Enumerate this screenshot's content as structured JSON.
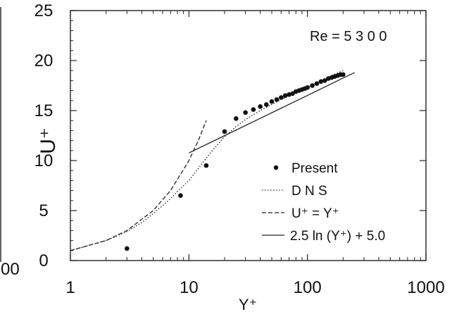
{
  "chart_data": {
    "type": "line",
    "title": "",
    "xlabel": "Y⁺",
    "ylabel": "U⁺",
    "x_scale": "log",
    "xlim": [
      1,
      1000
    ],
    "ylim": [
      0,
      25
    ],
    "x_ticks": [
      "1",
      "10",
      "100",
      "1000"
    ],
    "y_ticks": [
      "0",
      "5",
      "10",
      "15",
      "20",
      "25"
    ],
    "grid": false,
    "legend_position": "lower-right",
    "annotation": "Re = 5 3 0 0",
    "left_fragment_tick": "00",
    "series": [
      {
        "name": "Present",
        "style": "markers",
        "x": [
          3,
          8.5,
          14,
          20,
          25,
          30,
          35,
          40,
          45,
          50,
          55,
          60,
          65,
          70,
          75,
          80,
          85,
          90,
          95,
          100,
          110,
          120,
          130,
          140,
          150,
          160,
          170,
          180,
          190,
          200
        ],
        "y": [
          1.2,
          6.5,
          9.5,
          12.9,
          14.2,
          14.8,
          15.1,
          15.4,
          15.6,
          15.9,
          16.1,
          16.3,
          16.5,
          16.6,
          16.7,
          16.9,
          17.0,
          17.1,
          17.2,
          17.3,
          17.5,
          17.7,
          17.9,
          18.0,
          18.2,
          18.3,
          18.4,
          18.5,
          18.6,
          18.6
        ]
      },
      {
        "name": "D N S",
        "style": "dotted",
        "x": [
          1,
          2,
          3,
          4,
          5,
          6,
          7,
          8,
          10,
          12,
          15,
          20,
          25,
          30,
          40,
          50,
          60,
          80,
          100,
          130,
          160,
          200
        ],
        "y": [
          1.0,
          2.0,
          2.9,
          3.8,
          4.7,
          5.5,
          6.2,
          6.9,
          8.0,
          9.2,
          10.7,
          12.4,
          13.4,
          14.1,
          15.0,
          15.6,
          16.1,
          16.8,
          17.3,
          18.0,
          18.5,
          19.0
        ]
      },
      {
        "name": "U⁺ = Y⁺",
        "style": "dashed",
        "x": [
          1,
          2,
          3,
          5,
          7,
          10,
          12,
          14
        ],
        "y": [
          1,
          2,
          3,
          5,
          7,
          10,
          12,
          14
        ]
      },
      {
        "name": "2.5 ln (Y⁺) + 5.0",
        "style": "solid",
        "x": [
          10,
          20,
          50,
          100,
          200,
          250
        ],
        "y": [
          10.76,
          12.49,
          14.78,
          16.51,
          18.25,
          18.8
        ]
      }
    ]
  }
}
